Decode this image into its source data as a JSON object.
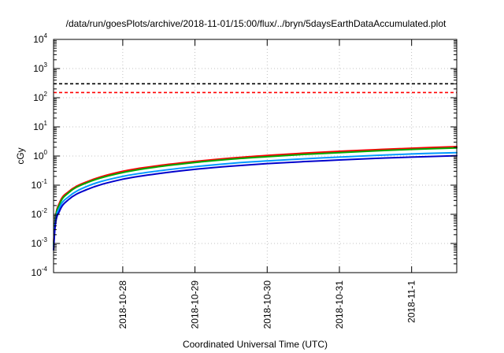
{
  "chart_data": {
    "type": "line",
    "title": "/data/run/goesPlots/archive/2018-11-01/15:00/flux/../bryn/5daysEarthDataAccumulated.plot",
    "xlabel": "Coordinated Universal Time (UTC)",
    "ylabel": "cGy",
    "y_scale": "log",
    "ylim": [
      0.0001,
      10000
    ],
    "xlim": [
      "2018-10-27 01:00",
      "2018-11-01 15:00"
    ],
    "grid": true,
    "x_ticks": [
      {
        "date": "2018-10-28",
        "label": "2018-10-28"
      },
      {
        "date": "2018-10-29",
        "label": "2018-10-29"
      },
      {
        "date": "2018-10-30",
        "label": "2018-10-30"
      },
      {
        "date": "2018-10-31",
        "label": "2018-10-31"
      },
      {
        "date": "2018-11-01",
        "label": "2018-11-1"
      }
    ],
    "y_ticks": [
      {
        "base": "10",
        "exp": "-4",
        "value": 0.0001
      },
      {
        "base": "10",
        "exp": "-3",
        "value": 0.001
      },
      {
        "base": "10",
        "exp": "-2",
        "value": 0.01
      },
      {
        "base": "10",
        "exp": "-1",
        "value": 0.1
      },
      {
        "base": "10",
        "exp": "0",
        "value": 1
      },
      {
        "base": "10",
        "exp": "1",
        "value": 10
      },
      {
        "base": "10",
        "exp": "2",
        "value": 100
      },
      {
        "base": "10",
        "exp": "3",
        "value": 1000
      },
      {
        "base": "10",
        "exp": "4",
        "value": 10000
      }
    ],
    "reference_lines": [
      {
        "value": 300,
        "color": "#000000",
        "style": "dashed"
      },
      {
        "value": 150,
        "color": "#ff0000",
        "style": "dashed"
      }
    ],
    "series": [
      {
        "color": "#ff0000",
        "x": [
          "2018-10-27 01:00",
          "2018-10-27 01:30",
          "2018-10-27 03:00",
          "2018-10-27 06:00",
          "2018-10-27 12:00",
          "2018-10-28 00:00",
          "2018-10-28 12:00",
          "2018-10-29 00:00",
          "2018-10-29 12:00",
          "2018-10-30 00:00",
          "2018-10-30 12:00",
          "2018-10-31 00:00",
          "2018-10-31 12:00",
          "2018-11-01 00:00",
          "2018-11-01 15:00"
        ],
        "values": [
          0.001,
          0.006,
          0.025,
          0.06,
          0.13,
          0.3,
          0.47,
          0.65,
          0.85,
          1.05,
          1.25,
          1.45,
          1.65,
          1.85,
          2.1
        ]
      },
      {
        "color": "#00aa00",
        "x": [
          "2018-10-27 01:00",
          "2018-10-27 01:30",
          "2018-10-27 03:00",
          "2018-10-27 06:00",
          "2018-10-27 12:00",
          "2018-10-28 00:00",
          "2018-10-28 12:00",
          "2018-10-29 00:00",
          "2018-10-29 12:00",
          "2018-10-30 00:00",
          "2018-10-30 12:00",
          "2018-10-31 00:00",
          "2018-10-31 12:00",
          "2018-11-01 00:00",
          "2018-11-01 15:00"
        ],
        "values": [
          0.0009,
          0.0055,
          0.022,
          0.055,
          0.12,
          0.27,
          0.43,
          0.6,
          0.78,
          0.95,
          1.13,
          1.3,
          1.5,
          1.68,
          1.9
        ]
      },
      {
        "color": "#0099ff",
        "x": [
          "2018-10-27 01:00",
          "2018-10-27 01:30",
          "2018-10-27 03:00",
          "2018-10-27 06:00",
          "2018-10-27 12:00",
          "2018-10-28 00:00",
          "2018-10-28 12:00",
          "2018-10-29 00:00",
          "2018-10-29 12:00",
          "2018-10-30 00:00",
          "2018-10-30 12:00",
          "2018-10-31 00:00",
          "2018-10-31 12:00",
          "2018-11-01 00:00",
          "2018-11-01 15:00"
        ],
        "values": [
          0.0008,
          0.0045,
          0.017,
          0.04,
          0.09,
          0.2,
          0.31,
          0.43,
          0.56,
          0.68,
          0.8,
          0.92,
          1.05,
          1.18,
          1.3
        ]
      },
      {
        "color": "#0000cc",
        "x": [
          "2018-10-27 01:00",
          "2018-10-27 01:30",
          "2018-10-27 03:00",
          "2018-10-27 06:00",
          "2018-10-27 12:00",
          "2018-10-28 00:00",
          "2018-10-28 12:00",
          "2018-10-29 00:00",
          "2018-10-29 12:00",
          "2018-10-30 00:00",
          "2018-10-30 12:00",
          "2018-10-31 00:00",
          "2018-10-31 12:00",
          "2018-11-01 00:00",
          "2018-11-01 15:00"
        ],
        "values": [
          0.0006,
          0.0035,
          0.013,
          0.032,
          0.07,
          0.16,
          0.25,
          0.35,
          0.45,
          0.55,
          0.64,
          0.73,
          0.83,
          0.92,
          1.02
        ]
      }
    ]
  }
}
